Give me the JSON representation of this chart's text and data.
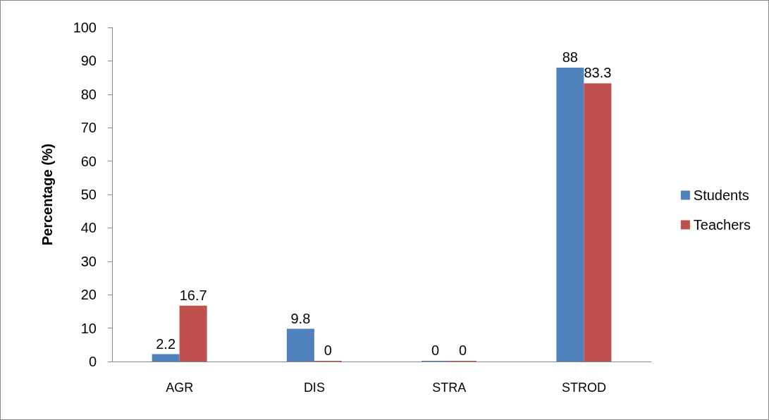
{
  "chart_data": {
    "type": "bar",
    "ylabel": "Percentage (%)",
    "categories": [
      "AGR",
      "DIS",
      "STRA",
      "STROD"
    ],
    "series": [
      {
        "name": "Students",
        "color": "#4f81bd",
        "values": [
          2.2,
          9.8,
          0,
          88
        ]
      },
      {
        "name": "Teachers",
        "color": "#c0504d",
        "values": [
          16.7,
          0,
          0,
          83.3
        ]
      }
    ],
    "ylim": [
      0,
      100
    ],
    "yticks": [
      0,
      10,
      20,
      30,
      40,
      50,
      60,
      70,
      80,
      90,
      100
    ],
    "grid": false,
    "legend": "right",
    "data_labels": true
  }
}
